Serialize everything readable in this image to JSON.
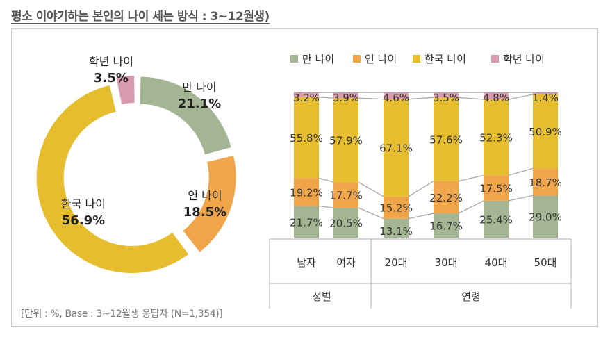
{
  "title": "평소 이야기하는 본인의 나이 세는 방식 : 3~12월생)",
  "footnote": "[단위 : %, Base : 3~12월생 응답자 (N=1,354)]",
  "colors": {
    "man_nai": "#a3b592",
    "yeon_nai": "#f0a54a",
    "hanguk_nai": "#e6bd2e",
    "haknyeon_nai": "#d89aac"
  },
  "chart_data": [
    {
      "type": "pie",
      "variant": "donut",
      "title": "",
      "categories": [
        "만 나이",
        "연 나이",
        "한국 나이",
        "학년 나이"
      ],
      "values": [
        21.1,
        18.5,
        56.9,
        3.5
      ],
      "value_labels": [
        "21.1%",
        "18.5%",
        "56.9%",
        "3.5%"
      ]
    },
    {
      "type": "bar",
      "stacked": true,
      "legend": [
        "만 나이",
        "연 나이",
        "한국 나이",
        "학년 나이"
      ],
      "legend_position": "top",
      "categories": [
        "남자",
        "여자",
        "20대",
        "30대",
        "40대",
        "50대"
      ],
      "groups": [
        {
          "label": "성별",
          "members": [
            "남자",
            "여자"
          ]
        },
        {
          "label": "연령",
          "members": [
            "20대",
            "30대",
            "40대",
            "50대"
          ]
        }
      ],
      "series": [
        {
          "name": "만 나이",
          "values": [
            21.7,
            20.5,
            13.1,
            16.7,
            25.4,
            29.0
          ],
          "labels": [
            "21.7%",
            "20.5%",
            "13.1%",
            "16.7%",
            "25.4%",
            "29.0%"
          ]
        },
        {
          "name": "연 나이",
          "values": [
            19.2,
            17.7,
            15.2,
            22.2,
            17.5,
            18.7
          ],
          "labels": [
            "19.2%",
            "17.7%",
            "15.2%",
            "22.2%",
            "17.5%",
            "18.7%"
          ]
        },
        {
          "name": "한국 나이",
          "values": [
            55.8,
            57.9,
            67.1,
            57.6,
            52.3,
            50.9
          ],
          "labels": [
            "55.8%",
            "57.9%",
            "67.1%",
            "57.6%",
            "52.3%",
            "50.9%"
          ]
        },
        {
          "name": "학년 나이",
          "values": [
            3.2,
            3.9,
            4.6,
            3.5,
            4.8,
            1.4
          ],
          "labels": [
            "3.2%",
            "3.9%",
            "4.6%",
            "3.5%",
            "4.8%",
            "1.4%"
          ]
        }
      ],
      "ylim": [
        0,
        100
      ]
    }
  ]
}
